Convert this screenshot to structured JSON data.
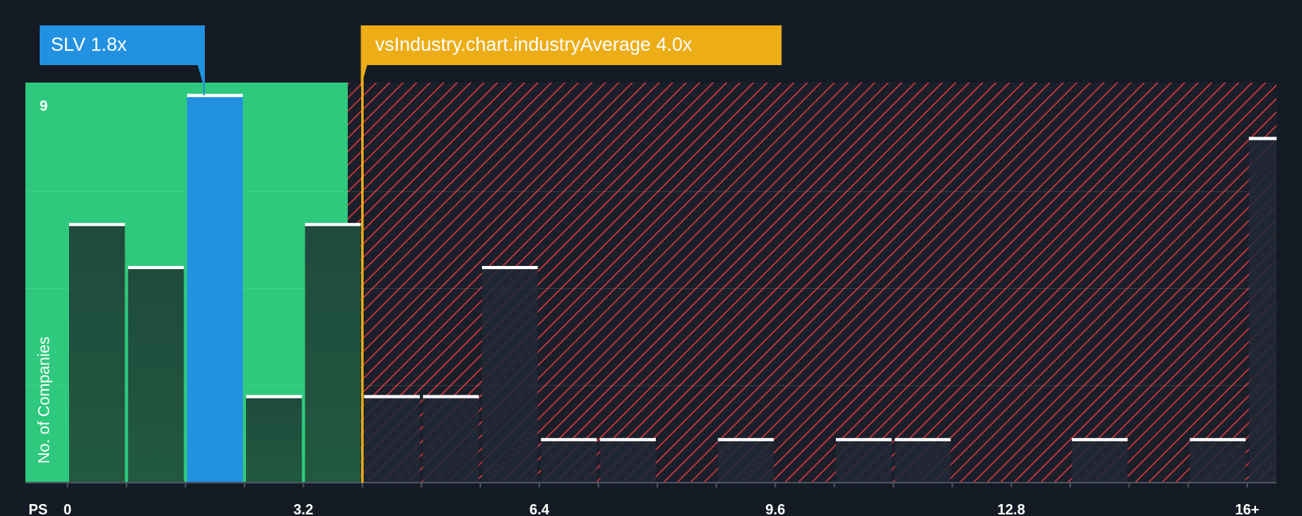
{
  "chart_data": {
    "type": "bar",
    "xlabel": "PS",
    "ylabel": "No. of Companies",
    "x_ticks": [
      "0",
      "3.2",
      "6.4",
      "9.6",
      "12.8",
      "16+"
    ],
    "x_tick_values": [
      0,
      3.2,
      6.4,
      9.6,
      12.8,
      16
    ],
    "x_range": [
      -0.56,
      16.4
    ],
    "bin_width": 0.8,
    "y_ticks": [
      "9"
    ],
    "y_tick_values": [
      9
    ],
    "ylim": [
      0,
      9.3
    ],
    "bins": [
      {
        "x": 0.4,
        "count": 6
      },
      {
        "x": 1.2,
        "count": 5
      },
      {
        "x": 2.0,
        "count": 9,
        "highlight": true
      },
      {
        "x": 2.8,
        "count": 2
      },
      {
        "x": 3.6,
        "count": 6
      },
      {
        "x": 4.4,
        "count": 2
      },
      {
        "x": 5.2,
        "count": 2
      },
      {
        "x": 6.0,
        "count": 5
      },
      {
        "x": 6.8,
        "count": 1
      },
      {
        "x": 7.6,
        "count": 1
      },
      {
        "x": 9.2,
        "count": 1
      },
      {
        "x": 10.8,
        "count": 1
      },
      {
        "x": 11.6,
        "count": 1
      },
      {
        "x": 14.0,
        "count": 1
      },
      {
        "x": 15.6,
        "count": 1
      },
      {
        "x": 16.4,
        "count": 8
      }
    ],
    "company": {
      "label": "SLV 1.8x",
      "value": 1.8
    },
    "industry": {
      "label": "vsIndustry.chart.industryAverage 4.0x",
      "value": 4.0
    },
    "colors": {
      "background": "#151b24",
      "below_zone": "#2ec97d",
      "above_zone_stripe": "#d8383f",
      "bar": "#1e4a3d",
      "bar_above": "#212836",
      "highlight_bar": "#2391e1",
      "company_callout": "#2391e1",
      "industry_callout": "#edad17",
      "bar_cap": "#ffffff"
    }
  }
}
